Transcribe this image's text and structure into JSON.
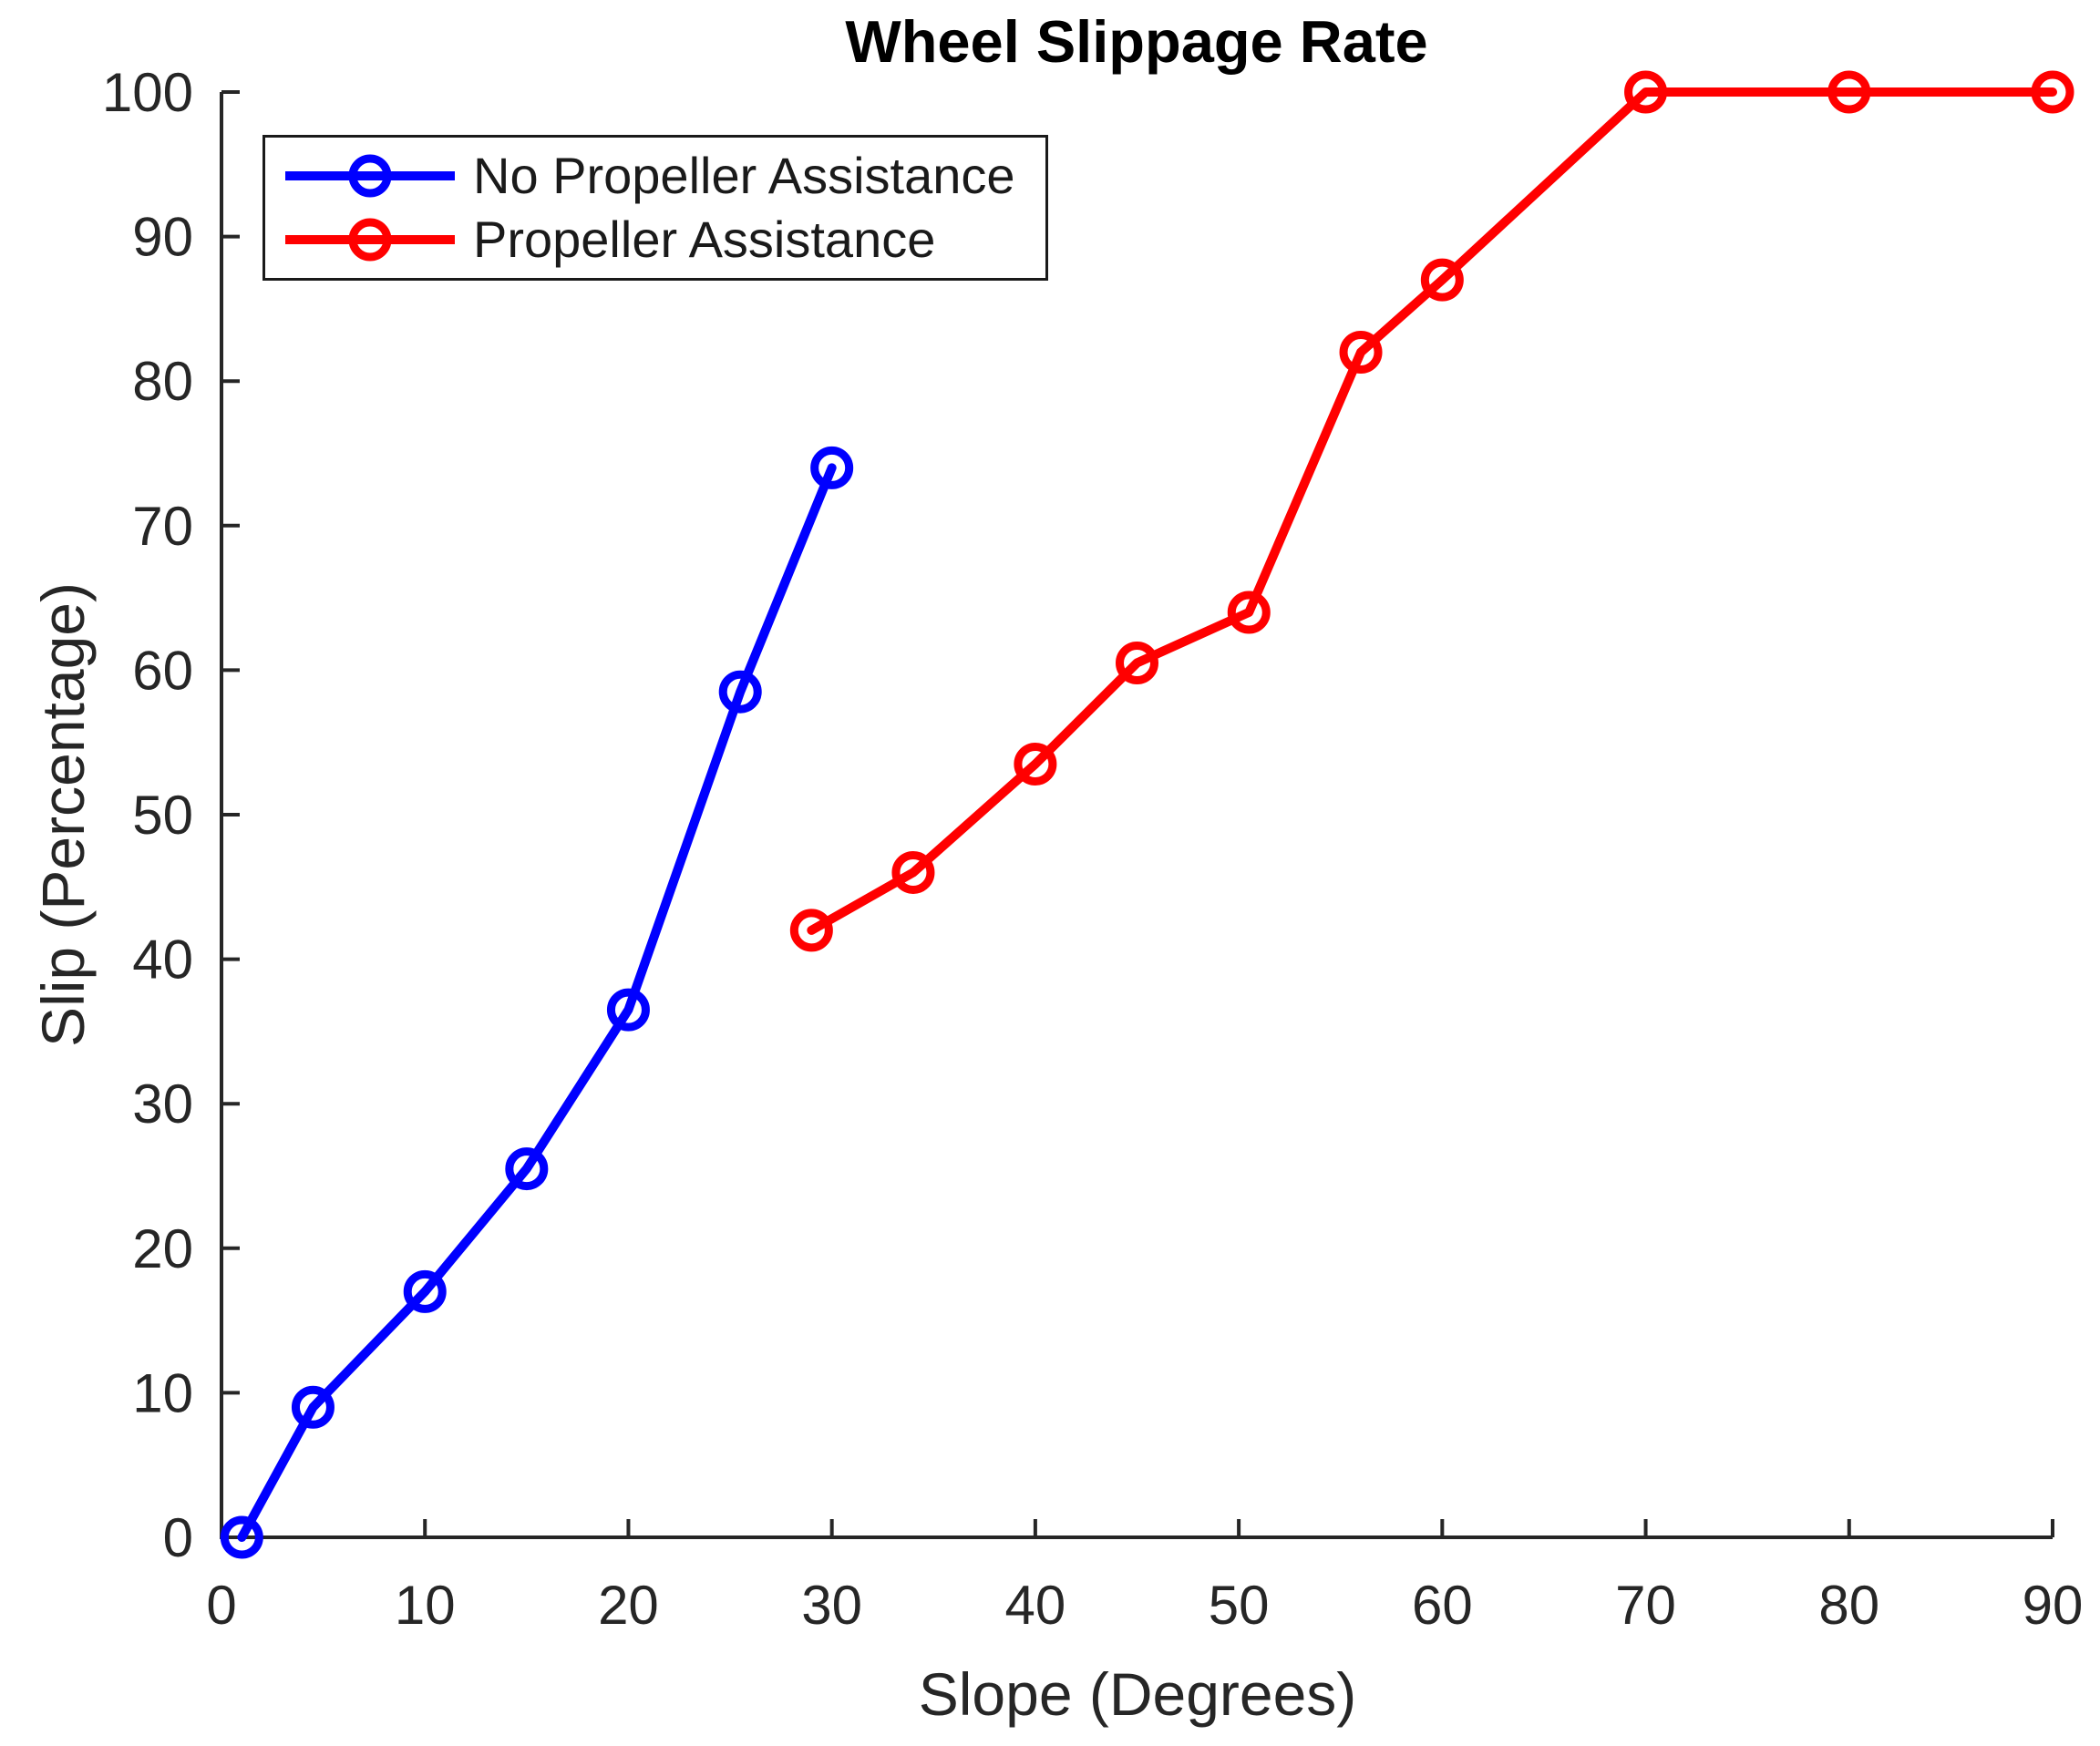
{
  "chart_data": {
    "type": "line",
    "title": "Wheel Slippage Rate",
    "xlabel": "Slope (Degrees)",
    "ylabel": "Slip (Percentage)",
    "xlim": [
      0,
      90
    ],
    "ylim": [
      0,
      100
    ],
    "xticks": [
      0,
      10,
      20,
      30,
      40,
      50,
      60,
      70,
      80,
      90
    ],
    "yticks": [
      0,
      10,
      20,
      30,
      40,
      50,
      60,
      70,
      80,
      90,
      100
    ],
    "grid": false,
    "background": "#ffffff",
    "axis_color": "#262626",
    "legend": {
      "position": "top-left",
      "border": true
    },
    "series": [
      {
        "name": "No Propeller Assistance",
        "color": "#0000ff",
        "marker": "circle",
        "points": [
          [
            1,
            0
          ],
          [
            4.5,
            9
          ],
          [
            10,
            17
          ],
          [
            15,
            25.5
          ],
          [
            20,
            36.5
          ],
          [
            25.5,
            58.5
          ],
          [
            30,
            74
          ]
        ]
      },
      {
        "name": "Propeller Assistance",
        "color": "#ff0000",
        "marker": "circle",
        "points": [
          [
            29,
            42
          ],
          [
            34,
            46
          ],
          [
            40,
            53.5
          ],
          [
            45,
            60.5
          ],
          [
            50.5,
            64
          ],
          [
            56,
            82
          ],
          [
            60,
            87
          ],
          [
            70,
            100
          ],
          [
            80,
            100
          ],
          [
            90,
            100
          ]
        ]
      }
    ]
  }
}
